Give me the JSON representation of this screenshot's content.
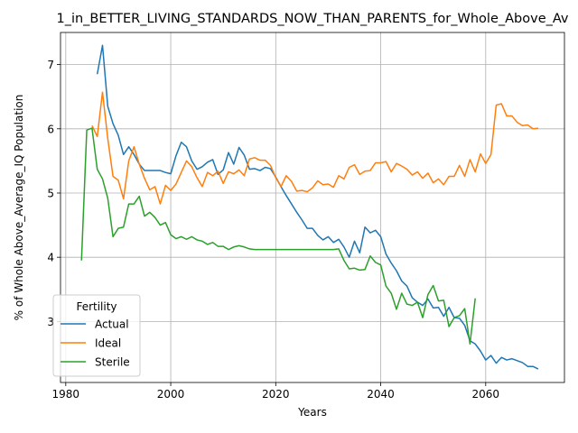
{
  "chart_data": {
    "type": "line",
    "title": "1_in_BETTER_LIVING_STANDARDS_NOW_THAN_PARENTS_for_Whole_Above_Av",
    "xlabel": "Years",
    "ylabel": "% of Whole Above_Average_IQ Population",
    "xlim": [
      1979,
      2075
    ],
    "ylim": [
      2.05,
      7.5
    ],
    "xticks": [
      1980,
      2000,
      2020,
      2040,
      2060
    ],
    "yticks": [
      3,
      4,
      5,
      6,
      7
    ],
    "grid": true,
    "legend": {
      "title": "Fertility",
      "placement": "bottom-left"
    },
    "series": [
      {
        "name": "Actual",
        "color": "#1f77b4",
        "x": [
          1986,
          1987,
          1988,
          1989,
          1990,
          1991,
          1992,
          1993,
          1994,
          1995,
          1996,
          1997,
          1998,
          1999,
          2000,
          2001,
          2002,
          2003,
          2004,
          2005,
          2006,
          2007,
          2008,
          2009,
          2010,
          2011,
          2012,
          2013,
          2014,
          2015,
          2016,
          2017,
          2018,
          2019,
          2020,
          2021,
          2022,
          2023,
          2024,
          2025,
          2026,
          2027,
          2028,
          2029,
          2030,
          2031,
          2032,
          2033,
          2034,
          2035,
          2036,
          2037,
          2038,
          2039,
          2040,
          2041,
          2042,
          2043,
          2044,
          2045,
          2046,
          2047,
          2048,
          2049,
          2050,
          2051,
          2052,
          2053,
          2054,
          2055,
          2056,
          2057,
          2058,
          2059,
          2060,
          2061,
          2062,
          2063,
          2064,
          2065,
          2066,
          2067,
          2068,
          2069,
          2070
        ],
        "y": [
          6.85,
          7.3,
          6.35,
          6.08,
          5.9,
          5.6,
          5.72,
          5.6,
          5.45,
          5.35,
          5.35,
          5.35,
          5.35,
          5.32,
          5.3,
          5.58,
          5.79,
          5.72,
          5.5,
          5.37,
          5.41,
          5.48,
          5.52,
          5.29,
          5.36,
          5.63,
          5.45,
          5.71,
          5.59,
          5.37,
          5.38,
          5.35,
          5.4,
          5.38,
          5.25,
          5.1,
          4.96,
          4.83,
          4.7,
          4.58,
          4.45,
          4.45,
          4.34,
          4.27,
          4.32,
          4.23,
          4.28,
          4.16,
          4.0,
          4.25,
          4.07,
          4.47,
          4.38,
          4.42,
          4.32,
          4.05,
          3.91,
          3.79,
          3.63,
          3.55,
          3.37,
          3.3,
          3.25,
          3.35,
          3.21,
          3.22,
          3.08,
          3.22,
          3.06,
          3.05,
          2.94,
          2.7,
          2.65,
          2.54,
          2.4,
          2.47,
          2.35,
          2.44,
          2.4,
          2.42,
          2.39,
          2.36,
          2.3,
          2.3,
          2.26
        ]
      },
      {
        "name": "Ideal",
        "color": "#ff7f0e",
        "x": [
          1985,
          1986,
          1987,
          1988,
          1989,
          1990,
          1991,
          1992,
          1993,
          1994,
          1995,
          1996,
          1997,
          1998,
          1999,
          2000,
          2001,
          2002,
          2003,
          2004,
          2005,
          2006,
          2007,
          2008,
          2009,
          2010,
          2011,
          2012,
          2013,
          2014,
          2015,
          2016,
          2017,
          2018,
          2019,
          2020,
          2021,
          2022,
          2023,
          2024,
          2025,
          2026,
          2027,
          2028,
          2029,
          2030,
          2031,
          2032,
          2033,
          2034,
          2035,
          2036,
          2037,
          2038,
          2039,
          2040,
          2041,
          2042,
          2043,
          2044,
          2045,
          2046,
          2047,
          2048,
          2049,
          2050,
          2051,
          2052,
          2053,
          2054,
          2055,
          2056,
          2057,
          2058,
          2059,
          2060,
          2061,
          2062,
          2063,
          2064,
          2065,
          2066,
          2067,
          2068,
          2069,
          2070
        ],
        "y": [
          6.05,
          5.88,
          6.57,
          5.85,
          5.26,
          5.2,
          4.91,
          5.5,
          5.72,
          5.45,
          5.23,
          5.05,
          5.1,
          4.83,
          5.12,
          5.04,
          5.14,
          5.32,
          5.5,
          5.41,
          5.24,
          5.1,
          5.32,
          5.27,
          5.34,
          5.15,
          5.33,
          5.3,
          5.36,
          5.27,
          5.53,
          5.55,
          5.51,
          5.51,
          5.43,
          5.24,
          5.1,
          5.27,
          5.18,
          5.03,
          5.04,
          5.02,
          5.08,
          5.19,
          5.13,
          5.14,
          5.09,
          5.27,
          5.22,
          5.4,
          5.44,
          5.29,
          5.34,
          5.35,
          5.47,
          5.47,
          5.49,
          5.33,
          5.46,
          5.42,
          5.37,
          5.28,
          5.33,
          5.23,
          5.31,
          5.16,
          5.22,
          5.13,
          5.26,
          5.26,
          5.43,
          5.26,
          5.52,
          5.33,
          5.61,
          5.46,
          5.6,
          6.37,
          6.39,
          6.2,
          6.2,
          6.1,
          6.05,
          6.06,
          6.0,
          6.01
        ]
      },
      {
        "name": "Sterile",
        "color": "#2ca02c",
        "x": [
          1983,
          1984,
          1985,
          1986,
          1987,
          1988,
          1989,
          1990,
          1991,
          1992,
          1993,
          1994,
          1995,
          1996,
          1997,
          1998,
          1999,
          2000,
          2001,
          2002,
          2003,
          2004,
          2005,
          2006,
          2007,
          2008,
          2009,
          2010,
          2011,
          2012,
          2013,
          2014,
          2015,
          2016,
          2017,
          2018,
          2019,
          2020,
          2021,
          2022,
          2023,
          2024,
          2025,
          2026,
          2027,
          2028,
          2029,
          2030,
          2031,
          2032,
          2033,
          2034,
          2035,
          2036,
          2037,
          2038,
          2039,
          2040,
          2041,
          2042,
          2043,
          2044,
          2045,
          2046,
          2047,
          2048,
          2049,
          2050,
          2051,
          2052,
          2053,
          2054,
          2055,
          2056,
          2057,
          2058
        ],
        "y": [
          3.95,
          5.98,
          6.01,
          5.37,
          5.22,
          4.92,
          4.32,
          4.45,
          4.47,
          4.83,
          4.83,
          4.95,
          4.64,
          4.7,
          4.62,
          4.5,
          4.54,
          4.35,
          4.29,
          4.32,
          4.28,
          4.32,
          4.27,
          4.25,
          4.2,
          4.23,
          4.17,
          4.17,
          4.12,
          4.16,
          4.18,
          4.16,
          4.13,
          4.12,
          4.12,
          4.12,
          4.12,
          4.12,
          4.12,
          4.12,
          4.12,
          4.12,
          4.12,
          4.12,
          4.12,
          4.12,
          4.12,
          4.12,
          4.12,
          4.13,
          3.95,
          3.82,
          3.83,
          3.8,
          3.81,
          4.02,
          3.92,
          3.88,
          3.55,
          3.44,
          3.19,
          3.44,
          3.27,
          3.25,
          3.3,
          3.06,
          3.42,
          3.56,
          3.32,
          3.33,
          2.92,
          3.06,
          3.09,
          3.2,
          2.65,
          3.36
        ]
      }
    ]
  }
}
